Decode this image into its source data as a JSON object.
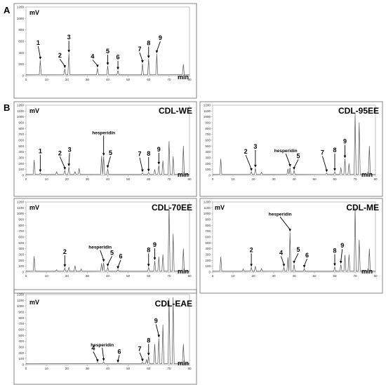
{
  "panel_labels": {
    "a": "A",
    "b": "B"
  },
  "chart_data": [
    {
      "id": "std",
      "type": "line",
      "title": "",
      "ylabel": "mV",
      "xlabel": "min",
      "xlim": [
        0,
        80
      ],
      "ylim": [
        0,
        1200
      ],
      "xticks": [
        "0",
        "10",
        "20",
        "30",
        "40",
        "50",
        "60",
        "70",
        "80"
      ],
      "yticks": [
        "0",
        "200",
        "400",
        "600",
        "800",
        "1000",
        "1200"
      ],
      "peaks": [
        [
          7,
          270
        ],
        [
          19,
          120
        ],
        [
          21,
          390
        ],
        [
          35,
          130
        ],
        [
          40,
          170
        ],
        [
          45,
          90
        ],
        [
          57,
          210
        ],
        [
          60,
          290
        ],
        [
          64,
          380
        ],
        [
          77,
          200
        ]
      ],
      "labels": [
        {
          "text": "1",
          "x": 7,
          "y": 270
        },
        {
          "text": "2",
          "x": 19,
          "y": 120
        },
        {
          "text": "3",
          "x": 21,
          "y": 390
        },
        {
          "text": "4",
          "x": 35,
          "y": 130
        },
        {
          "text": "5",
          "x": 40,
          "y": 170
        },
        {
          "text": "6",
          "x": 45,
          "y": 90
        },
        {
          "text": "7",
          "x": 57,
          "y": 210
        },
        {
          "text": "8",
          "x": 60,
          "y": 290
        },
        {
          "text": "9",
          "x": 64,
          "y": 380
        }
      ]
    },
    {
      "id": "we",
      "type": "line",
      "title": "CDL-WE",
      "ylabel": "mV",
      "xlabel": "min",
      "xlim": [
        0,
        80
      ],
      "ylim": [
        0,
        1200
      ],
      "xticks": [
        "0",
        "10",
        "20",
        "30",
        "40",
        "50",
        "60",
        "70",
        "80"
      ],
      "yticks": [
        "0",
        "100",
        "200",
        "300",
        "400",
        "500",
        "600",
        "700",
        "800",
        "900",
        "1000",
        "1100",
        "1200"
      ],
      "peaks": [
        [
          4,
          260
        ],
        [
          7,
          40
        ],
        [
          15,
          60
        ],
        [
          19,
          80
        ],
        [
          21,
          140
        ],
        [
          24,
          60
        ],
        [
          26,
          120
        ],
        [
          37,
          330
        ],
        [
          38,
          320
        ],
        [
          40,
          110
        ],
        [
          57,
          40
        ],
        [
          60,
          50
        ],
        [
          63,
          100
        ],
        [
          65,
          170
        ],
        [
          67,
          250
        ],
        [
          70,
          580
        ],
        [
          72,
          320
        ],
        [
          77,
          500
        ]
      ],
      "labels": [
        {
          "text": "1",
          "x": 7,
          "y": 40
        },
        {
          "text": "2",
          "x": 19,
          "y": 80
        },
        {
          "text": "3",
          "x": 21,
          "y": 140
        },
        {
          "text": "hesperidin",
          "x": 38,
          "y": 320
        },
        {
          "text": "5",
          "x": 40,
          "y": 110
        },
        {
          "text": "7",
          "x": 57,
          "y": 40
        },
        {
          "text": "8",
          "x": 60,
          "y": 50
        },
        {
          "text": "9",
          "x": 65,
          "y": 170
        }
      ]
    },
    {
      "id": "95ee",
      "type": "line",
      "title": "CDL-95EE",
      "ylabel": "",
      "xlabel": "min",
      "xlim": [
        0,
        80
      ],
      "ylim": [
        0,
        1200
      ],
      "xticks": [
        "0",
        "10",
        "20",
        "30",
        "40",
        "50",
        "60",
        "70",
        "80"
      ],
      "yticks": [
        "0",
        "100",
        "200",
        "300",
        "400",
        "500",
        "600",
        "700",
        "800",
        "900",
        "1000",
        "1100",
        "1200"
      ],
      "peaks": [
        [
          4,
          280
        ],
        [
          19,
          60
        ],
        [
          21,
          120
        ],
        [
          24,
          50
        ],
        [
          37,
          110
        ],
        [
          38,
          130
        ],
        [
          40,
          80
        ],
        [
          56,
          40
        ],
        [
          60,
          60
        ],
        [
          63,
          130
        ],
        [
          65,
          280
        ],
        [
          67,
          200
        ],
        [
          70,
          1050
        ],
        [
          72,
          900
        ],
        [
          77,
          500
        ]
      ],
      "labels": [
        {
          "text": "2",
          "x": 19,
          "y": 60
        },
        {
          "text": "3",
          "x": 21,
          "y": 120
        },
        {
          "text": "hesperidin",
          "x": 38,
          "y": 130
        },
        {
          "text": "5",
          "x": 40,
          "y": 80
        },
        {
          "text": "7",
          "x": 56,
          "y": 40
        },
        {
          "text": "8",
          "x": 60,
          "y": 60
        },
        {
          "text": "9",
          "x": 65,
          "y": 280
        }
      ]
    },
    {
      "id": "70ee",
      "type": "line",
      "title": "CDL-70EE",
      "ylabel": "mV",
      "xlabel": "min",
      "xlim": [
        0,
        80
      ],
      "ylim": [
        0,
        1200
      ],
      "xticks": [
        "0",
        "10",
        "20",
        "30",
        "40",
        "50",
        "60",
        "70",
        "80"
      ],
      "yticks": [
        "0",
        "100",
        "200",
        "300",
        "400",
        "500",
        "600",
        "700",
        "800",
        "900",
        "1000",
        "1100",
        "1200"
      ],
      "peaks": [
        [
          4,
          270
        ],
        [
          15,
          40
        ],
        [
          19,
          70
        ],
        [
          21,
          80
        ],
        [
          24,
          110
        ],
        [
          27,
          50
        ],
        [
          37,
          150
        ],
        [
          38,
          160
        ],
        [
          40,
          80
        ],
        [
          45,
          40
        ],
        [
          60,
          80
        ],
        [
          63,
          190
        ],
        [
          65,
          260
        ],
        [
          67,
          300
        ],
        [
          70,
          1150
        ],
        [
          72,
          650
        ],
        [
          77,
          400
        ]
      ],
      "labels": [
        {
          "text": "2",
          "x": 19,
          "y": 70
        },
        {
          "text": "hesperidin",
          "x": 38,
          "y": 160
        },
        {
          "text": "5",
          "x": 40,
          "y": 80
        },
        {
          "text": "6",
          "x": 45,
          "y": 40
        },
        {
          "text": "8",
          "x": 60,
          "y": 80
        },
        {
          "text": "9",
          "x": 63,
          "y": 190
        }
      ]
    },
    {
      "id": "me",
      "type": "line",
      "title": "CDL-ME",
      "ylabel": "mV",
      "xlabel": "min",
      "xlim": [
        0,
        80
      ],
      "ylim": [
        0,
        1200
      ],
      "xticks": [
        "0",
        "10",
        "20",
        "30",
        "40",
        "50",
        "60",
        "70",
        "80"
      ],
      "yticks": [
        "0",
        "100",
        "200",
        "300",
        "400",
        "500",
        "600",
        "700",
        "800",
        "900",
        "1000",
        "1100",
        "1200"
      ],
      "peaks": [
        [
          4,
          260
        ],
        [
          15,
          50
        ],
        [
          19,
          80
        ],
        [
          21,
          100
        ],
        [
          24,
          60
        ],
        [
          35,
          80
        ],
        [
          37,
          250
        ],
        [
          38,
          680
        ],
        [
          40,
          130
        ],
        [
          45,
          60
        ],
        [
          60,
          90
        ],
        [
          63,
          130
        ],
        [
          65,
          290
        ],
        [
          67,
          300
        ],
        [
          70,
          1100
        ],
        [
          72,
          550
        ],
        [
          77,
          400
        ]
      ],
      "labels": [
        {
          "text": "2",
          "x": 19,
          "y": 80
        },
        {
          "text": "4",
          "x": 35,
          "y": 80
        },
        {
          "text": "hesperidin",
          "x": 38,
          "y": 680
        },
        {
          "text": "5",
          "x": 40,
          "y": 130
        },
        {
          "text": "6",
          "x": 45,
          "y": 60
        },
        {
          "text": "8",
          "x": 60,
          "y": 90
        },
        {
          "text": "9",
          "x": 63,
          "y": 130
        }
      ]
    },
    {
      "id": "eae",
      "type": "line",
      "title": "CDL-EAE",
      "ylabel": "mV",
      "xlabel": "min",
      "xlim": [
        0,
        80
      ],
      "ylim": [
        0,
        1200
      ],
      "xticks": [
        "0",
        "10",
        "20",
        "30",
        "40",
        "50",
        "60",
        "70",
        "80"
      ],
      "yticks": [
        "0",
        "100",
        "200",
        "300",
        "400",
        "500",
        "600",
        "700",
        "800",
        "900",
        "1000",
        "1100",
        "1200"
      ],
      "peaks": [
        [
          35,
          30
        ],
        [
          38,
          50
        ],
        [
          45,
          20
        ],
        [
          57,
          40
        ],
        [
          59,
          90
        ],
        [
          60,
          140
        ],
        [
          63,
          350
        ],
        [
          65,
          450
        ],
        [
          67,
          680
        ],
        [
          70,
          1130
        ],
        [
          72,
          1150
        ],
        [
          77,
          350
        ]
      ],
      "labels": [
        {
          "text": "4",
          "x": 35,
          "y": 30
        },
        {
          "text": "hesperidin",
          "x": 38,
          "y": 50
        },
        {
          "text": "6",
          "x": 45,
          "y": 20
        },
        {
          "text": "7",
          "x": 57,
          "y": 40
        },
        {
          "text": "8",
          "x": 60,
          "y": 140
        },
        {
          "text": "9",
          "x": 65,
          "y": 450
        }
      ]
    }
  ]
}
